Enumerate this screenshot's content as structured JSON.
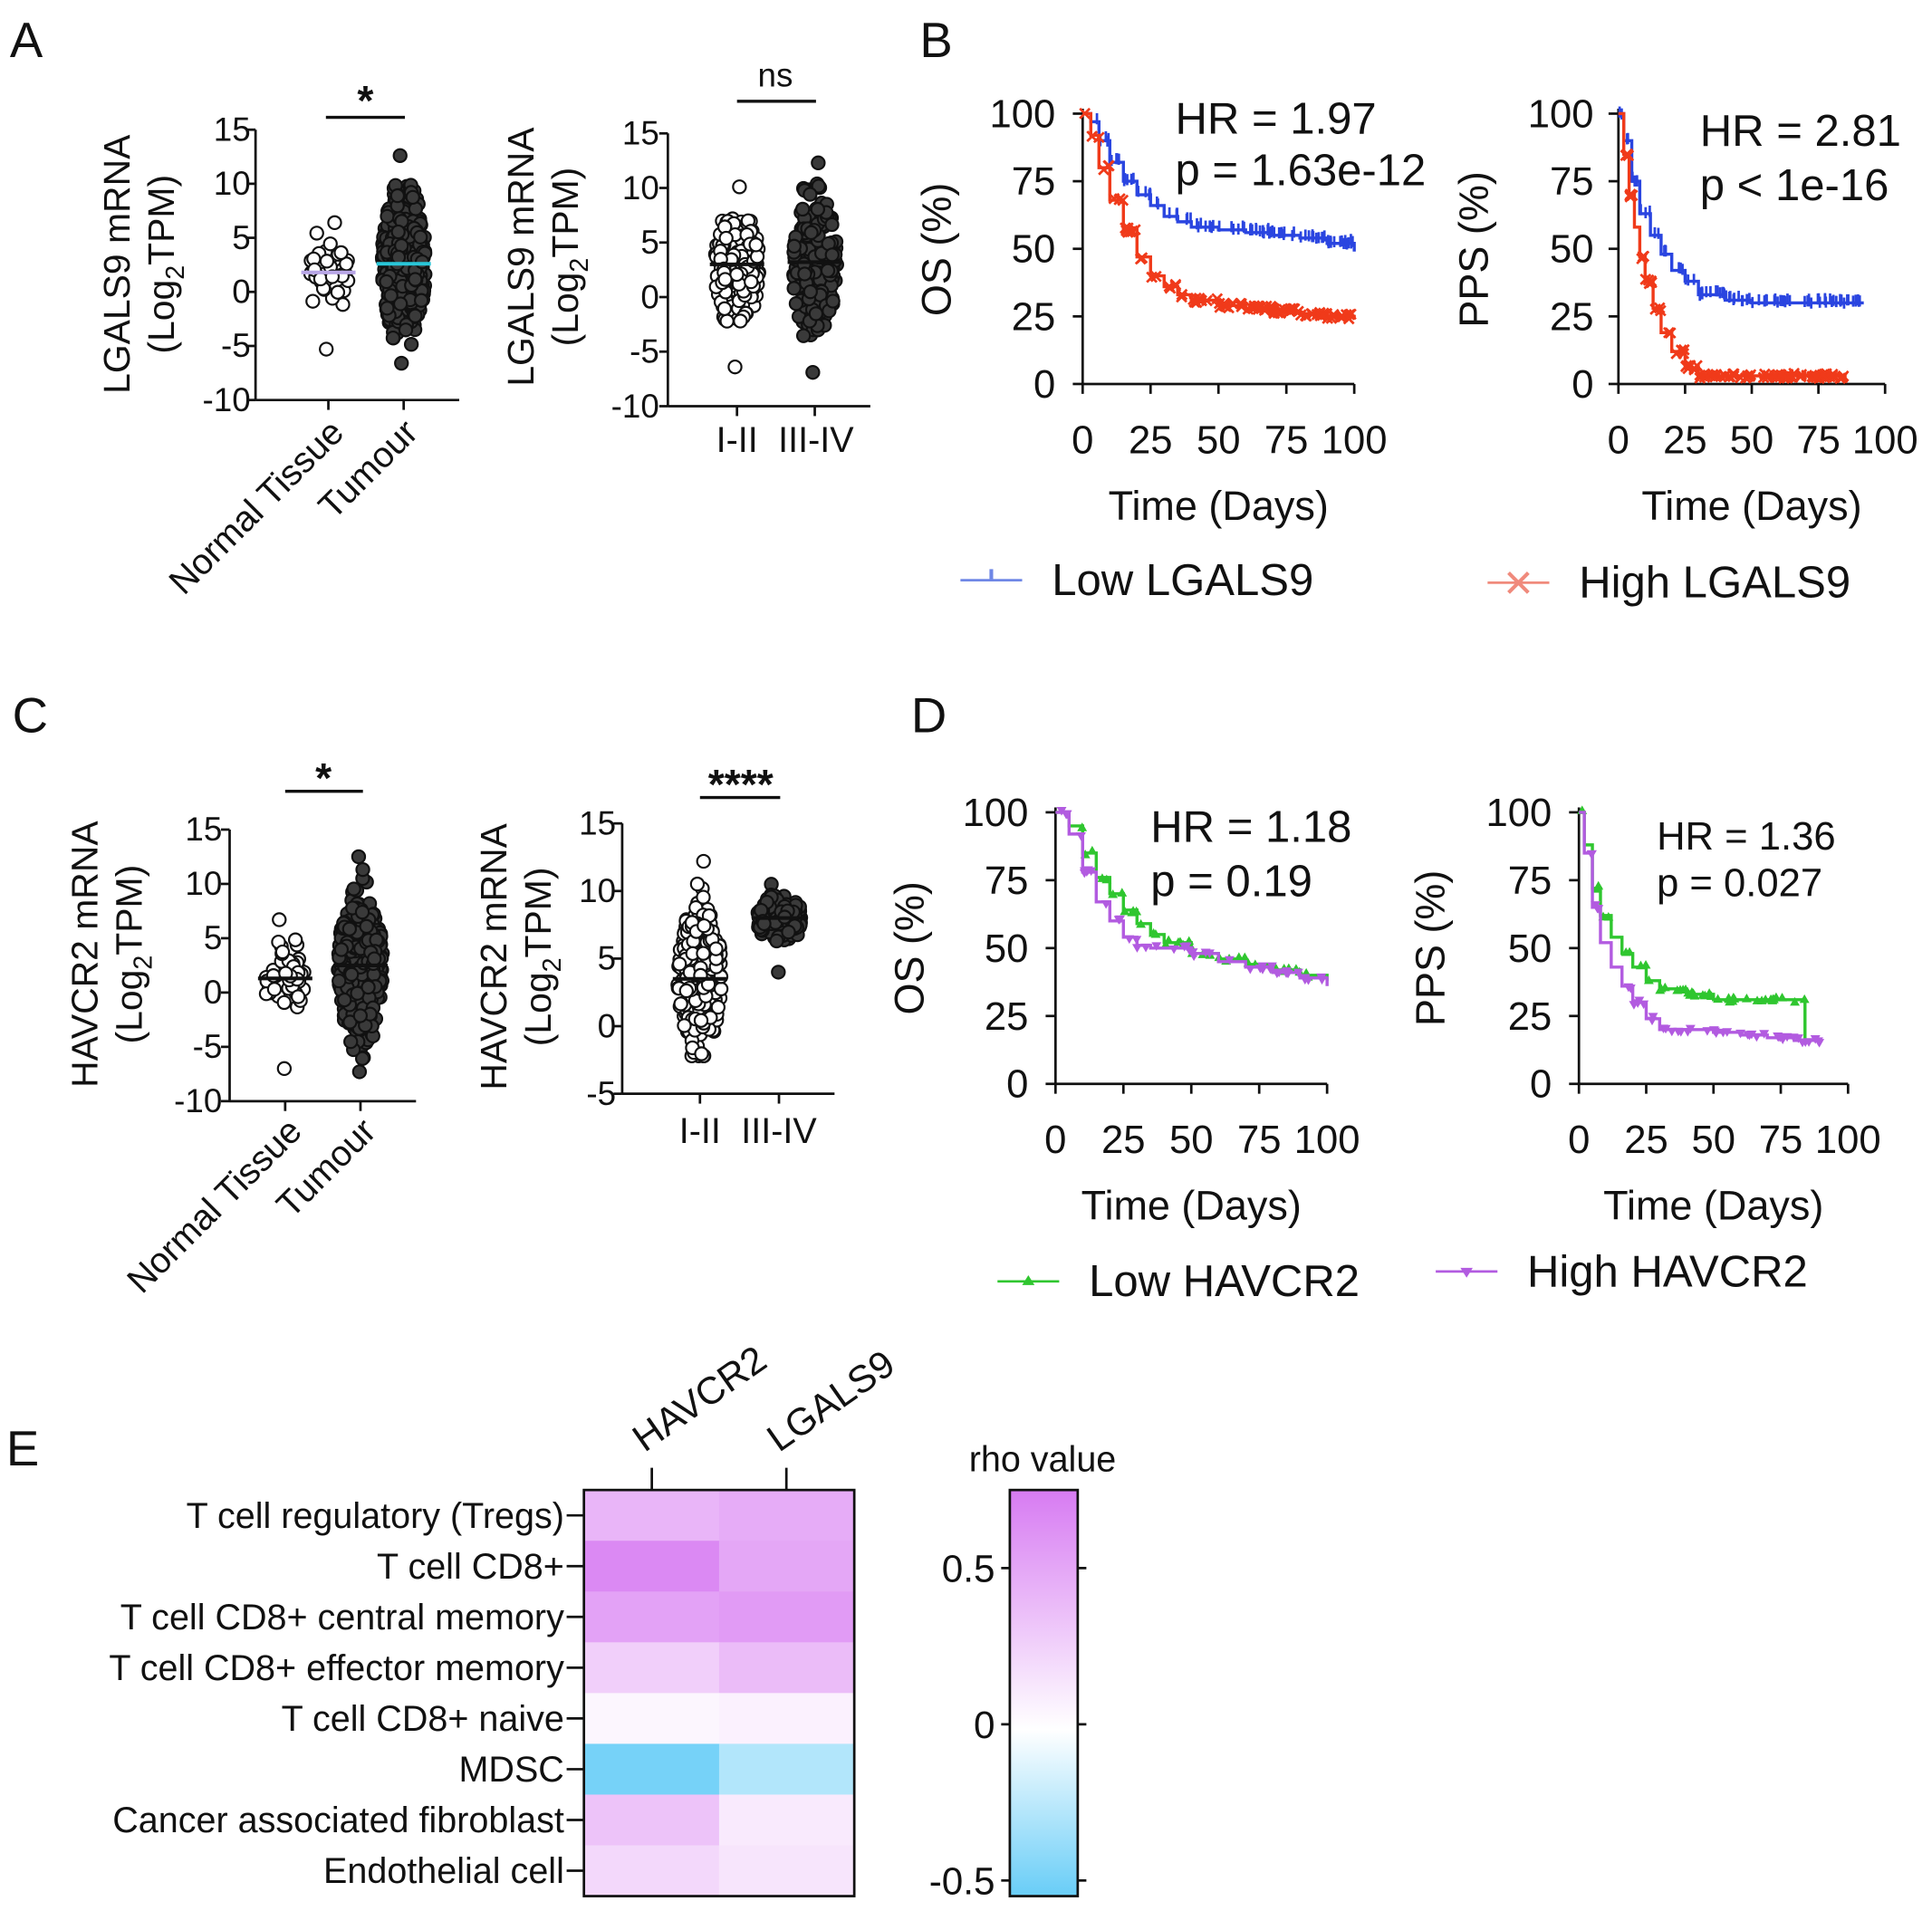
{
  "colors": {
    "low_lgals9": "#2a45e0",
    "high_lgals9": "#f03a1a",
    "legend_low_lgals9": "#6f87e6",
    "legend_high_lgals9": "#f08a7c",
    "low_havcr2": "#2fc62f",
    "high_havcr2": "#b25be0",
    "heat_pos": "#d77bf2",
    "heat_neg": "#68cdf7",
    "mean_normal": "#b8a6e6",
    "mean_tumour": "#29c6d8"
  },
  "chart_data": [
    {
      "id": "A1",
      "panel": "A",
      "type": "scatter",
      "ylabel_main": "LGALS9 mRNA",
      "ylabel_unit": "Log",
      "ylabel_sub": "2",
      "ylabel_tail": "TPM",
      "ylim": [
        -10,
        15
      ],
      "yticks": [
        15,
        10,
        5,
        0,
        -5,
        -10
      ],
      "categories": [
        "Normal Tissue",
        "Tumour"
      ],
      "groups": [
        {
          "name": "Normal Tissue",
          "style": "open",
          "n": 45,
          "mean": 1.8,
          "min": -5.3,
          "max": 6.4
        },
        {
          "name": "Tumour",
          "style": "filled",
          "n": 380,
          "mean": 2.6,
          "min": -6.6,
          "max": 12.6
        }
      ],
      "significance": "*"
    },
    {
      "id": "A2",
      "panel": "A",
      "type": "scatter",
      "ylabel_main": "LGALS9 mRNA",
      "ylabel_unit": "Log",
      "ylabel_sub": "2",
      "ylabel_tail": "TPM",
      "ylim": [
        -10,
        15
      ],
      "yticks": [
        15,
        10,
        5,
        0,
        -5,
        -10
      ],
      "categories": [
        "I-II",
        "III-IV"
      ],
      "groups": [
        {
          "name": "I-II",
          "style": "open",
          "n": 240,
          "mean": 3.0,
          "min": -6.4,
          "max": 10.1
        },
        {
          "name": "III-IV",
          "style": "filled",
          "n": 200,
          "mean": 3.2,
          "min": -6.9,
          "max": 12.3
        }
      ],
      "significance": "ns"
    },
    {
      "id": "B1",
      "panel": "B",
      "type": "line",
      "ylabel": "OS (%)",
      "xlabel": "Time (Days)",
      "xlim": [
        0,
        100
      ],
      "ylim": [
        0,
        100
      ],
      "xticks": [
        0,
        25,
        50,
        75,
        100
      ],
      "yticks": [
        100,
        75,
        50,
        25,
        0
      ],
      "annotation": [
        "HR = 1.97",
        "p = 1.63e-12"
      ],
      "series": [
        {
          "name": "Low LGALS9",
          "x": [
            0,
            3,
            6,
            10,
            15,
            20,
            25,
            30,
            35,
            40,
            50,
            60,
            70,
            80,
            90,
            100
          ],
          "y": [
            100,
            97,
            90,
            82,
            75,
            70,
            66,
            62,
            60,
            58,
            57,
            56,
            55,
            54,
            52,
            49
          ]
        },
        {
          "name": "High LGALS9",
          "x": [
            0,
            3,
            6,
            10,
            15,
            20,
            25,
            30,
            35,
            40,
            50,
            60,
            70,
            80,
            90,
            100
          ],
          "y": [
            100,
            92,
            80,
            68,
            57,
            47,
            40,
            36,
            33,
            31,
            29,
            28,
            27,
            26,
            25,
            24
          ]
        }
      ]
    },
    {
      "id": "B2",
      "panel": "B",
      "type": "line",
      "ylabel": "PPS (%)",
      "xlabel": "Time (Days)",
      "xlim": [
        0,
        100
      ],
      "ylim": [
        0,
        100
      ],
      "xticks": [
        0,
        25,
        50,
        75,
        100
      ],
      "yticks": [
        100,
        75,
        50,
        25,
        0
      ],
      "annotation": [
        "HR = 2.81",
        "p < 1e-16"
      ],
      "series": [
        {
          "name": "Low LGALS9",
          "x": [
            0,
            2,
            5,
            8,
            12,
            16,
            20,
            25,
            30,
            40,
            50,
            60,
            70,
            80,
            92
          ],
          "y": [
            100,
            90,
            75,
            63,
            55,
            48,
            42,
            38,
            33,
            31,
            30,
            30,
            30,
            30,
            30
          ]
        },
        {
          "name": "High LGALS9",
          "x": [
            0,
            2,
            4,
            6,
            8,
            10,
            13,
            16,
            20,
            25,
            30,
            40,
            55,
            70,
            85
          ],
          "y": [
            100,
            85,
            70,
            58,
            47,
            38,
            28,
            19,
            12,
            6,
            3,
            3,
            3,
            3,
            2
          ]
        }
      ]
    },
    {
      "id": "C1",
      "panel": "C",
      "type": "scatter",
      "ylabel_main": "HAVCR2 mRNA",
      "ylabel_unit": "Log",
      "ylabel_sub": "2",
      "ylabel_tail": "TPM",
      "ylim": [
        -10,
        15
      ],
      "yticks": [
        15,
        10,
        5,
        0,
        -5,
        -10
      ],
      "categories": [
        "Normal Tissue",
        "Tumour"
      ],
      "groups": [
        {
          "name": "Normal Tissue",
          "style": "open",
          "n": 45,
          "mean": 1.3,
          "min": -7.0,
          "max": 6.7
        },
        {
          "name": "Tumour",
          "style": "filled",
          "n": 380,
          "mean": 2.5,
          "min": -7.3,
          "max": 12.5
        }
      ],
      "significance": "*"
    },
    {
      "id": "C2",
      "panel": "C",
      "type": "scatter",
      "ylabel_main": "HAVCR2 mRNA",
      "ylabel_unit": "Log",
      "ylabel_sub": "2",
      "ylabel_tail": "TPM",
      "ylim": [
        -5,
        15
      ],
      "yticks": [
        15,
        10,
        5,
        0,
        -5
      ],
      "categories": [
        "I-II",
        "III-IV"
      ],
      "groups": [
        {
          "name": "I-II",
          "style": "open",
          "n": 240,
          "mean": 3.5,
          "min": -2.2,
          "max": 12.2
        },
        {
          "name": "III-IV",
          "style": "filled",
          "n": 180,
          "mean": 8.0,
          "min": 4.0,
          "max": 10.5
        }
      ],
      "significance": "****"
    },
    {
      "id": "D1",
      "panel": "D",
      "type": "line",
      "ylabel": "OS (%)",
      "xlabel": "Time (Days)",
      "xlim": [
        0,
        100
      ],
      "ylim": [
        0,
        100
      ],
      "xticks": [
        0,
        25,
        50,
        75,
        100
      ],
      "yticks": [
        100,
        75,
        50,
        25,
        0
      ],
      "annotation": [
        "HR = 1.18",
        "p = 0.19"
      ],
      "series": [
        {
          "name": "Low HAVCR2",
          "x": [
            0,
            5,
            10,
            15,
            20,
            25,
            30,
            35,
            40,
            50,
            60,
            70,
            80,
            90,
            100
          ],
          "y": [
            100,
            95,
            85,
            76,
            70,
            64,
            59,
            55,
            52,
            48,
            46,
            44,
            42,
            40,
            38
          ]
        },
        {
          "name": "High HAVCR2",
          "x": [
            0,
            5,
            10,
            15,
            20,
            25,
            30,
            35,
            40,
            50,
            60,
            70,
            80,
            90,
            100
          ],
          "y": [
            100,
            92,
            78,
            67,
            60,
            54,
            51,
            50,
            50,
            48,
            45,
            43,
            41,
            39,
            36
          ]
        }
      ]
    },
    {
      "id": "D2",
      "panel": "D",
      "type": "line",
      "ylabel": "PPS (%)",
      "xlabel": "Time (Days)",
      "xlim": [
        0,
        100
      ],
      "ylim": [
        0,
        100
      ],
      "xticks": [
        0,
        25,
        50,
        75,
        100
      ],
      "yticks": [
        100,
        75,
        50,
        25,
        0
      ],
      "annotation": [
        "HR = 1.36",
        "p = 0.027"
      ],
      "series": [
        {
          "name": "Low HAVCR2",
          "x": [
            0,
            2,
            5,
            8,
            12,
            16,
            20,
            25,
            30,
            40,
            50,
            60,
            70,
            84,
            84
          ],
          "y": [
            100,
            88,
            72,
            62,
            54,
            48,
            43,
            38,
            35,
            33,
            31,
            31,
            31,
            31,
            15
          ]
        },
        {
          "name": "High HAVCR2",
          "x": [
            0,
            2,
            5,
            8,
            12,
            16,
            20,
            25,
            30,
            40,
            50,
            60,
            70,
            80,
            90
          ],
          "y": [
            100,
            85,
            65,
            52,
            43,
            36,
            30,
            24,
            20,
            20,
            19,
            18,
            17,
            16,
            16
          ]
        }
      ]
    },
    {
      "id": "E",
      "panel": "E",
      "type": "heatmap",
      "columns": [
        "HAVCR2",
        "LGALS9"
      ],
      "rows": [
        "T cell regulatory (Tregs)",
        "T cell CD8+",
        "T cell CD8+ central memory",
        "T cell CD8+ effector memory",
        "T cell CD8+ naive",
        "MDSC",
        "Cancer associated fibroblast",
        "Endothelial cell"
      ],
      "values": [
        [
          0.42,
          0.47
        ],
        [
          0.67,
          0.5
        ],
        [
          0.53,
          0.57
        ],
        [
          0.27,
          0.38
        ],
        [
          0.05,
          0.08
        ],
        [
          -0.5,
          -0.28
        ],
        [
          0.34,
          0.12
        ],
        [
          0.22,
          0.15
        ]
      ],
      "colorbar": {
        "title": "rho value",
        "range": [
          -0.55,
          0.75
        ],
        "ticks": [
          0.5,
          0,
          -0.5
        ],
        "tick_labels": [
          "0.5",
          "0",
          "-0.5"
        ]
      }
    }
  ],
  "panel_labels": [
    "A",
    "B",
    "C",
    "D",
    "E"
  ],
  "legends": {
    "B": [
      {
        "name": "Low LGALS9",
        "marker": "tick"
      },
      {
        "name": "High LGALS9",
        "marker": "x"
      }
    ],
    "D": [
      {
        "name": "Low HAVCR2",
        "marker": "triangle-up"
      },
      {
        "name": "High HAVCR2",
        "marker": "triangle-down"
      }
    ]
  }
}
